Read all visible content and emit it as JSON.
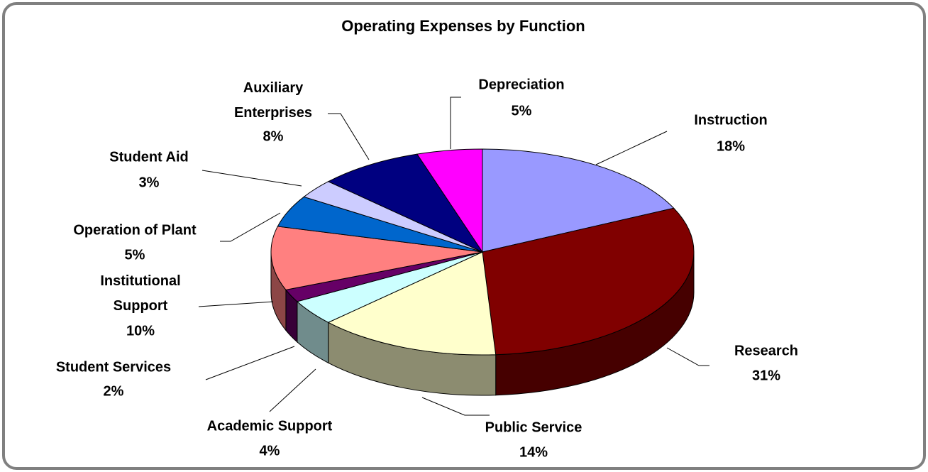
{
  "chart_data": {
    "type": "pie3d",
    "title": "Operating Expenses by Function",
    "categories": [
      "Instruction",
      "Research",
      "Public Service",
      "Academic Support",
      "Student Services",
      "Institutional Support",
      "Operation of Plant",
      "Student Aid",
      "Auxiliary Enterprises",
      "Depreciation"
    ],
    "values": [
      18,
      31,
      14,
      4,
      2,
      10,
      5,
      3,
      8,
      5
    ],
    "value_labels": [
      "18%",
      "31%",
      "14%",
      "4%",
      "2%",
      "10%",
      "5%",
      "3%",
      "8%",
      "5%"
    ],
    "colors": [
      "#9999ff",
      "#800000",
      "#ffffcc",
      "#ccffff",
      "#660066",
      "#ff8080",
      "#0066cc",
      "#ccccff",
      "#000080",
      "#ff00ff"
    ]
  }
}
